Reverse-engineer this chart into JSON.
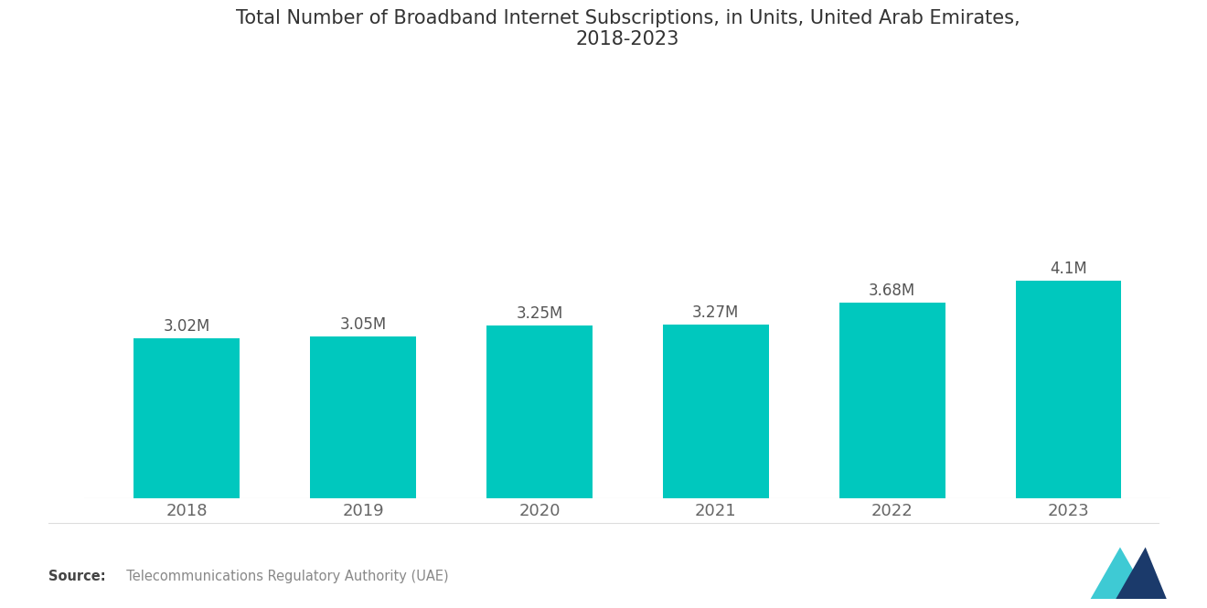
{
  "title": "Total Number of Broadband Internet Subscriptions, in Units, United Arab Emirates,\n2018-2023",
  "categories": [
    "2018",
    "2019",
    "2020",
    "2021",
    "2022",
    "2023"
  ],
  "values": [
    3.02,
    3.05,
    3.25,
    3.27,
    3.68,
    4.1
  ],
  "labels": [
    "3.02M",
    "3.05M",
    "3.25M",
    "3.27M",
    "3.68M",
    "4.1M"
  ],
  "bar_color": "#00C8BE",
  "background_color": "#ffffff",
  "title_fontsize": 15,
  "label_fontsize": 12,
  "tick_fontsize": 13,
  "source_bold": "Source:",
  "source_text": "  Telecommunications Regulatory Authority (UAE)",
  "ylim": [
    0,
    8.0
  ],
  "bar_width": 0.6,
  "title_color": "#333333",
  "tick_color": "#666666",
  "label_color": "#555555"
}
